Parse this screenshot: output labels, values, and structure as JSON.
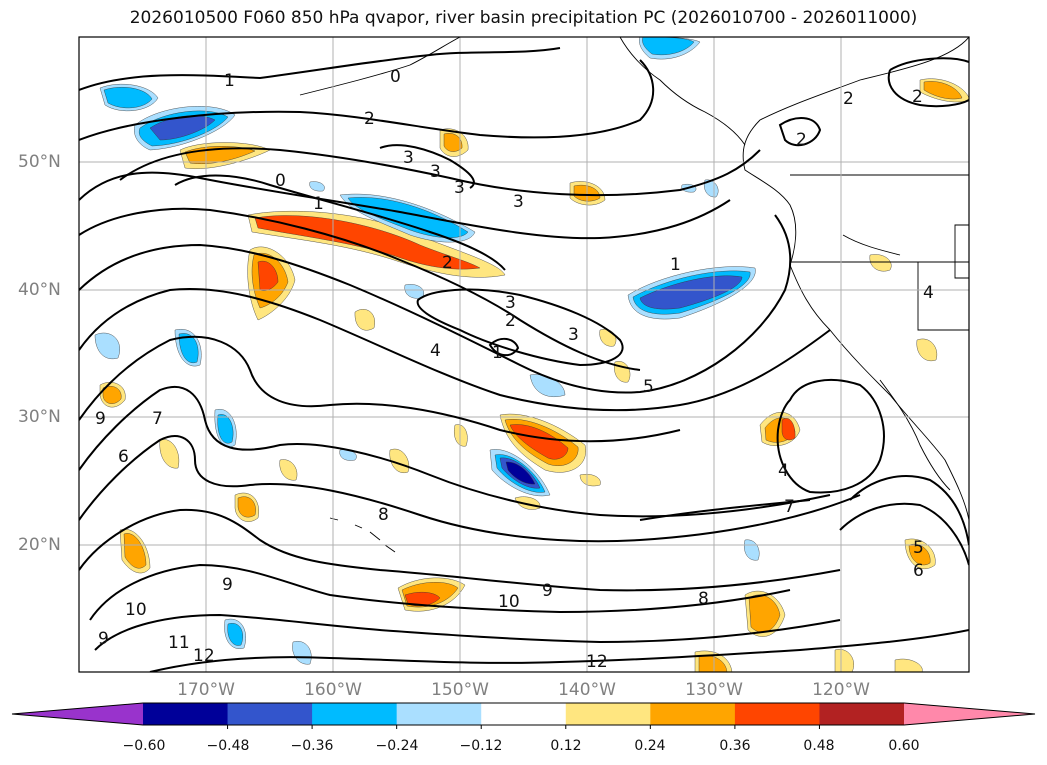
{
  "title": "2026010500 F060 850 hPa qvapor, river basin precipitation PC (2026010700 - 2026011000)",
  "map": {
    "lat_labels": [
      "50°N",
      "40°N",
      "30°N",
      "20°N"
    ],
    "lon_labels": [
      "170°W",
      "160°W",
      "150°W",
      "140°W",
      "130°W",
      "120°W"
    ],
    "grid_color": "#b0b0b0",
    "coast_color": "#000000"
  },
  "contour_labels": [
    {
      "id": "c1a",
      "text": "1"
    },
    {
      "id": "c0a",
      "text": "0"
    },
    {
      "id": "c2a",
      "text": "2"
    },
    {
      "id": "c3a",
      "text": "3"
    },
    {
      "id": "c3b",
      "text": "3"
    },
    {
      "id": "c3c",
      "text": "3"
    },
    {
      "id": "c0b",
      "text": "0"
    },
    {
      "id": "c1b",
      "text": "1"
    },
    {
      "id": "c3d",
      "text": "3"
    },
    {
      "id": "c2b",
      "text": "2"
    },
    {
      "id": "c2c",
      "text": "2"
    },
    {
      "id": "c2d",
      "text": "2"
    },
    {
      "id": "c1c",
      "text": "1"
    },
    {
      "id": "c3e",
      "text": "3"
    },
    {
      "id": "c2e",
      "text": "2"
    },
    {
      "id": "c3f",
      "text": "3"
    },
    {
      "id": "c4a",
      "text": "4"
    },
    {
      "id": "c1d",
      "text": "1"
    },
    {
      "id": "c5a",
      "text": "5"
    },
    {
      "id": "c4b",
      "text": "4"
    },
    {
      "id": "c2f",
      "text": "2"
    },
    {
      "id": "c9a",
      "text": "9"
    },
    {
      "id": "c7a",
      "text": "7"
    },
    {
      "id": "c6a",
      "text": "6"
    },
    {
      "id": "c8a",
      "text": "8"
    },
    {
      "id": "c7b",
      "text": "7"
    },
    {
      "id": "c4c",
      "text": "4"
    },
    {
      "id": "c9b",
      "text": "9"
    },
    {
      "id": "c10a",
      "text": "10"
    },
    {
      "id": "c9c",
      "text": "9"
    },
    {
      "id": "c10b",
      "text": "10"
    },
    {
      "id": "c8b",
      "text": "8"
    },
    {
      "id": "c9d",
      "text": "9"
    },
    {
      "id": "c11a",
      "text": "11"
    },
    {
      "id": "c12a",
      "text": "12"
    },
    {
      "id": "c12b",
      "text": "12"
    },
    {
      "id": "c5b",
      "text": "5"
    },
    {
      "id": "c6b",
      "text": "6"
    }
  ],
  "colorbar": {
    "ticks": [
      "−0.60",
      "−0.48",
      "−0.36",
      "−0.24",
      "−0.12",
      "0.12",
      "0.24",
      "0.36",
      "0.48",
      "0.60"
    ],
    "colors": [
      "#9933cc",
      "#000099",
      "#3355cc",
      "#00bbff",
      "#aadfff",
      "#ffffff",
      "#ffe680",
      "#ffa500",
      "#ff4500",
      "#b22222",
      "#ff88aa"
    ]
  },
  "shading_colors": {
    "neg_strong": "#000099",
    "neg_mid": "#3355cc",
    "neg_low": "#00bbff",
    "neg_faint": "#aadfff",
    "pos_faint": "#ffe680",
    "pos_low": "#ffa500",
    "pos_mid": "#ff4500",
    "pos_strong": "#b22222"
  }
}
